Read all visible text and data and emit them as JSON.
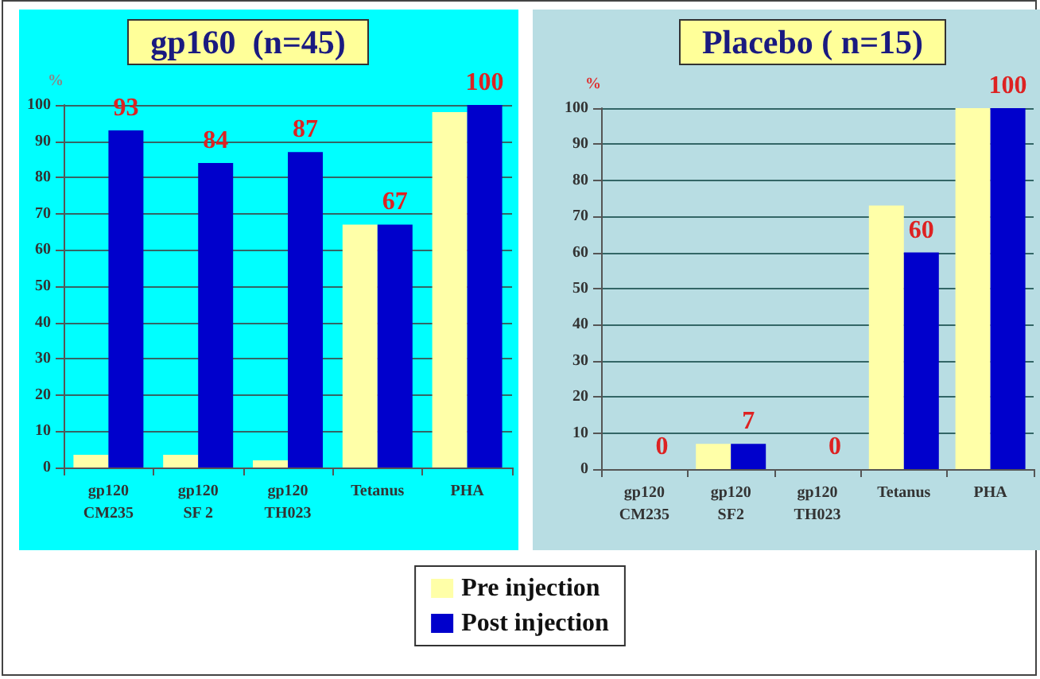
{
  "chart_data": [
    {
      "type": "bar",
      "title": "gp160  (n=45)",
      "ylabel": "%",
      "categories": [
        "gp120\nCM235",
        "gp120\nSF 2",
        "gp120\nTH023",
        "Tetanus",
        "PHA"
      ],
      "ylim": [
        0,
        100
      ],
      "yticks": [
        0,
        10,
        20,
        30,
        40,
        50,
        60,
        70,
        80,
        90,
        100
      ],
      "grid": "y",
      "legend": "bottom",
      "series": [
        {
          "name": "Pre injection",
          "color": "#ffffa8",
          "values": [
            3.5,
            3.5,
            2,
            67,
            98
          ]
        },
        {
          "name": "Post injection",
          "color": "#0000cc",
          "values": [
            93,
            84,
            87,
            67,
            100
          ],
          "value_labels": [
            "93",
            "84",
            "87",
            "67",
            "100"
          ]
        }
      ]
    },
    {
      "type": "bar",
      "title": "Placebo ( n=15)",
      "ylabel": "%",
      "categories": [
        "gp120\nCM235",
        "gp120\nSF2",
        "gp120\nTH023",
        "Tetanus",
        "PHA"
      ],
      "ylim": [
        0,
        100
      ],
      "yticks": [
        0,
        10,
        20,
        30,
        40,
        50,
        60,
        70,
        80,
        90,
        100
      ],
      "grid": "y",
      "series": [
        {
          "color": "#ffffa8",
          "values": [
            0,
            7,
            0,
            73,
            100
          ]
        },
        {
          "color": "#0000cc",
          "values": [
            0,
            7,
            0,
            60,
            100
          ],
          "value_labels": [
            "0",
            "7",
            "0",
            "60",
            "100"
          ]
        }
      ]
    }
  ]
}
